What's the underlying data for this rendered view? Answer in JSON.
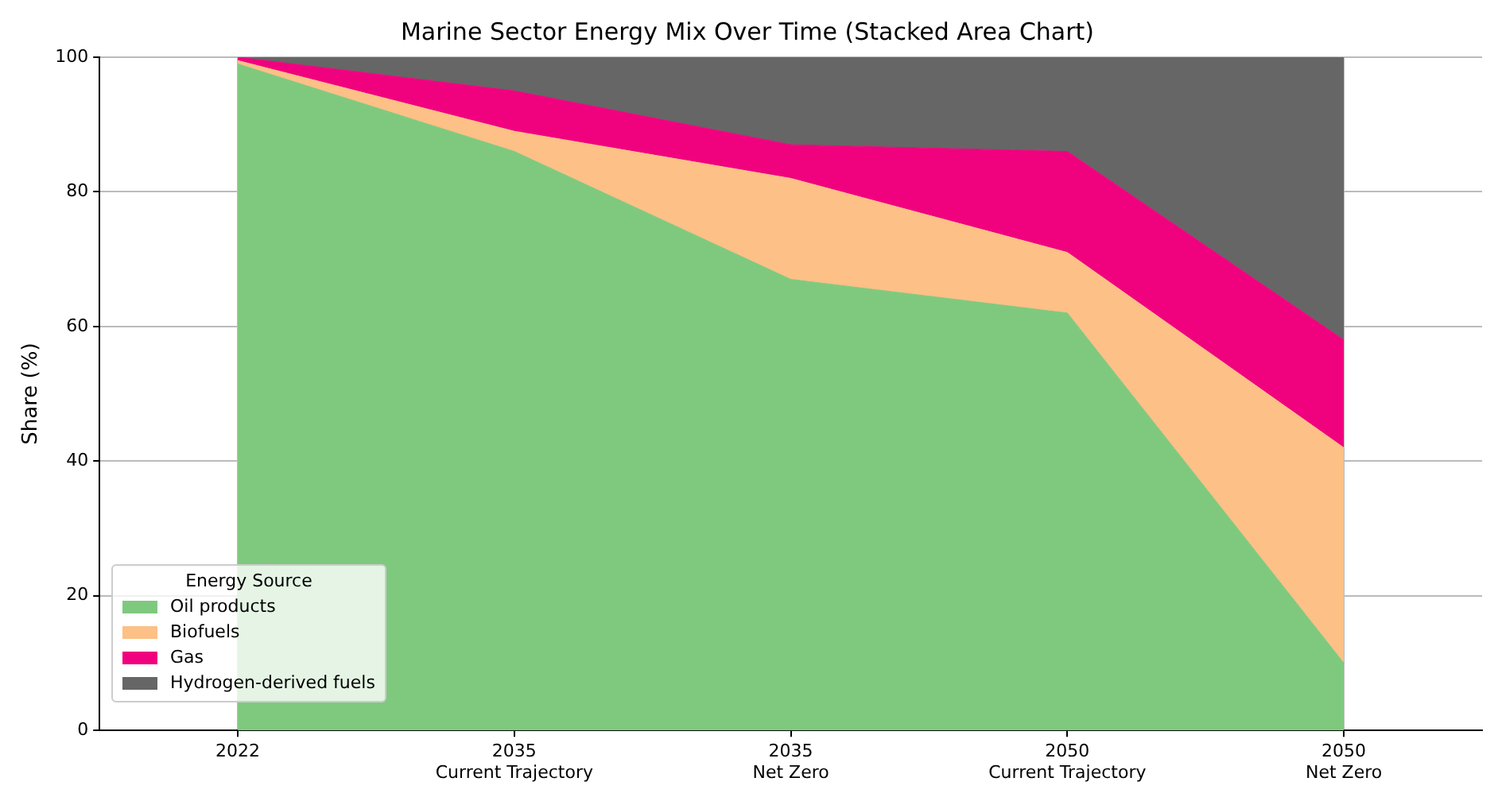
{
  "chart_data": {
    "type": "area",
    "title": "Marine Sector Energy Mix Over Time (Stacked Area Chart)",
    "ylabel": "Share (%)",
    "legend_title": "Energy Source",
    "categories": [
      "2022",
      "2035\nCurrent Trajectory",
      "2035\nNet Zero",
      "2050\nCurrent Trajectory",
      "2050\nNet Zero"
    ],
    "stacked": true,
    "series": [
      {
        "name": "Oil products",
        "color": "#7fc97f",
        "values": [
          99,
          86,
          67,
          62,
          10
        ]
      },
      {
        "name": "Biofuels",
        "color": "#fdc086",
        "values": [
          0.5,
          3,
          15,
          9,
          32
        ]
      },
      {
        "name": "Gas",
        "color": "#f0027f",
        "values": [
          0.5,
          6,
          5,
          15,
          16
        ]
      },
      {
        "name": "Hydrogen-derived fuels",
        "color": "#666666",
        "values": [
          0,
          5,
          13,
          14,
          42
        ]
      }
    ],
    "ylim": [
      0,
      100
    ],
    "yticks": [
      0,
      20,
      40,
      60,
      80,
      100
    ],
    "grid": true,
    "legend": "bottom left"
  }
}
